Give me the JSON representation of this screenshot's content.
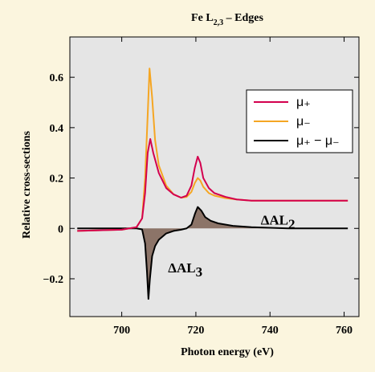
{
  "chart_data": {
    "type": "line",
    "title": {
      "main": "Fe L",
      "sub": "2,3",
      "rest": " – Edges"
    },
    "xlabel": "Photon energy (eV)",
    "ylabel": "Relative cross-sections",
    "xlim": [
      686,
      764
    ],
    "ylim": [
      -0.35,
      0.76
    ],
    "xticks": [
      700,
      720,
      740,
      760
    ],
    "yticks": [
      -0.2,
      0,
      0.2,
      0.4,
      0.6
    ],
    "ytick_labels": [
      "−0.2",
      "0",
      "0.2",
      "0.4",
      "0.6"
    ],
    "grid": false,
    "legend_placement": "top-right",
    "legend": [
      {
        "label": "μ₊",
        "color": "#d3004e"
      },
      {
        "label": "μ₋",
        "color": "#f5a623"
      },
      {
        "label": "μ₊ − μ₋",
        "color": "#000000"
      }
    ],
    "annotations": [
      {
        "main": "ΔAL",
        "sub": "2",
        "x": 737.5,
        "y": 0.015
      },
      {
        "main": "ΔAL",
        "sub": "3",
        "x": 712.5,
        "y": -0.175
      }
    ],
    "series": [
      {
        "name": "μ₊",
        "color": "#d3004e",
        "x": [
          688,
          700,
          704,
          705.5,
          706.3,
          707,
          707.7,
          708.5,
          710,
          712,
          714,
          716,
          717.5,
          718.8,
          719.7,
          720.5,
          721.2,
          722,
          723.5,
          725,
          728,
          731,
          735,
          745,
          761
        ],
        "y": [
          -0.01,
          -0.005,
          0.005,
          0.04,
          0.14,
          0.3,
          0.355,
          0.3,
          0.22,
          0.16,
          0.135,
          0.122,
          0.13,
          0.17,
          0.24,
          0.285,
          0.26,
          0.2,
          0.16,
          0.14,
          0.125,
          0.115,
          0.11,
          0.11,
          0.11
        ]
      },
      {
        "name": "μ₋",
        "color": "#f5a623",
        "x": [
          688,
          700,
          704,
          705.5,
          706.3,
          707,
          707.5,
          708.2,
          709,
          710,
          712,
          714,
          716,
          717.5,
          718.8,
          719.7,
          720.5,
          721.2,
          722,
          723.5,
          725,
          728,
          731,
          735,
          745,
          761
        ],
        "y": [
          -0.01,
          -0.005,
          0.005,
          0.04,
          0.2,
          0.45,
          0.635,
          0.52,
          0.35,
          0.25,
          0.17,
          0.135,
          0.122,
          0.125,
          0.145,
          0.18,
          0.2,
          0.19,
          0.165,
          0.14,
          0.13,
          0.12,
          0.115,
          0.11,
          0.11,
          0.11
        ]
      },
      {
        "name": "μ₊ − μ₋",
        "color": "#000000",
        "fill": "#8c7468",
        "x": [
          688,
          700,
          704,
          705.5,
          706.3,
          706.8,
          707.2,
          707.6,
          708.2,
          709,
          710,
          712,
          714,
          716,
          717.5,
          718.8,
          719.8,
          720.5,
          721.5,
          722.5,
          724,
          726,
          730,
          735,
          745,
          761
        ],
        "y": [
          0,
          0,
          0,
          -0.004,
          -0.06,
          -0.17,
          -0.28,
          -0.2,
          -0.11,
          -0.07,
          -0.045,
          -0.02,
          -0.01,
          -0.005,
          0.0,
          0.015,
          0.06,
          0.085,
          0.07,
          0.045,
          0.03,
          0.02,
          0.01,
          0.005,
          0.0,
          0.0
        ]
      }
    ]
  }
}
